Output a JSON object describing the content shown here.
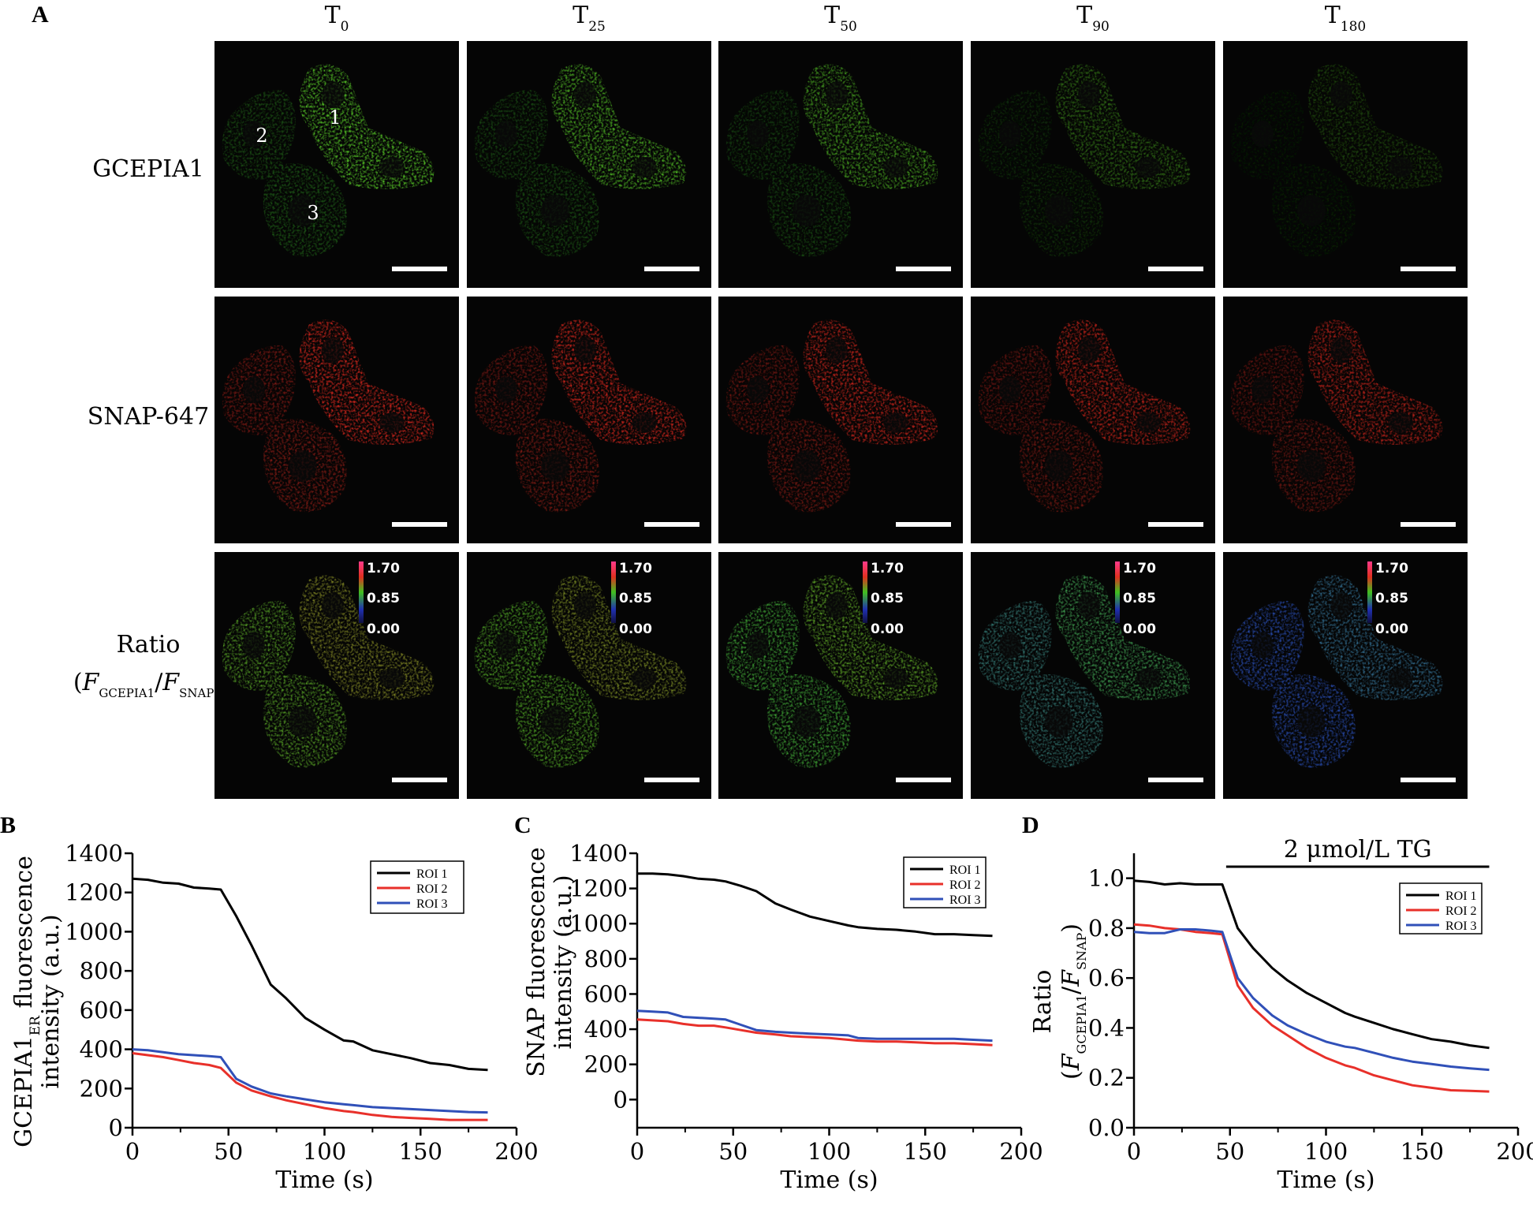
{
  "figure": {
    "panel_letters": {
      "a": "A",
      "b": "B",
      "c": "C",
      "d": "D"
    },
    "columns": [
      {
        "main": "T",
        "sub": "0"
      },
      {
        "main": "T",
        "sub": "25"
      },
      {
        "main": "T",
        "sub": "50"
      },
      {
        "main": "T",
        "sub": "90"
      },
      {
        "main": "T",
        "sub": "180"
      }
    ],
    "rows": [
      {
        "label": "GCEPIA1",
        "type": "green"
      },
      {
        "label": "SNAP-647",
        "type": "red"
      },
      {
        "label_line1": "Ratio",
        "open": "(",
        "f1": "F",
        "sub1": "GCEPIA1",
        "slash": "/",
        "f2": "F",
        "sub2": "SNAP",
        "close": ")",
        "type": "ratio"
      }
    ],
    "roi_labels": [
      "1",
      "2",
      "3"
    ],
    "colorbar_labels": [
      "1.70",
      "0.85",
      "0.00"
    ],
    "intensity_levels": {
      "green": [
        1.0,
        0.9,
        0.8,
        0.55,
        0.35
      ],
      "red": [
        1.0,
        0.95,
        0.92,
        0.88,
        0.85
      ],
      "ratio_hue": [
        0.62,
        0.6,
        0.5,
        0.3,
        0.1
      ]
    }
  },
  "colors": {
    "roi1": "#000000",
    "roi2": "#e8302a",
    "roi3": "#3050b8",
    "tg_bar": "#000000"
  },
  "chart_data": [
    {
      "panel": "B",
      "type": "line",
      "xlabel": "Time (s)",
      "ylabel_line1_main": "GCEPIA1",
      "ylabel_line1_sub": "ER",
      "ylabel_line1_rest": " fluorescence",
      "ylabel_line2": "intensity (a.u.)",
      "xlim": [
        0,
        200
      ],
      "ylim": [
        0,
        1400
      ],
      "xticks": [
        0,
        50,
        100,
        150,
        200
      ],
      "yticks": [
        0,
        200,
        400,
        600,
        800,
        1000,
        1200,
        1400
      ],
      "legend": "top-right",
      "series": [
        {
          "name": "ROI 1",
          "color": "#000000",
          "x": [
            0,
            8,
            16,
            24,
            32,
            40,
            46,
            54,
            62,
            72,
            80,
            90,
            100,
            110,
            115,
            125,
            135,
            145,
            155,
            165,
            175,
            185
          ],
          "y": [
            1270,
            1265,
            1250,
            1245,
            1225,
            1220,
            1215,
            1080,
            930,
            730,
            660,
            560,
            500,
            445,
            440,
            395,
            375,
            355,
            330,
            320,
            300,
            295
          ]
        },
        {
          "name": "ROI 2",
          "color": "#e8302a",
          "x": [
            0,
            8,
            16,
            24,
            32,
            40,
            46,
            54,
            62,
            72,
            80,
            90,
            100,
            110,
            115,
            125,
            135,
            145,
            155,
            165,
            175,
            185
          ],
          "y": [
            380,
            370,
            360,
            345,
            330,
            320,
            305,
            230,
            190,
            160,
            140,
            120,
            100,
            85,
            80,
            65,
            55,
            50,
            45,
            40,
            40,
            40
          ]
        },
        {
          "name": "ROI 3",
          "color": "#3050b8",
          "x": [
            0,
            8,
            16,
            24,
            32,
            40,
            46,
            54,
            62,
            72,
            80,
            90,
            100,
            110,
            115,
            125,
            135,
            145,
            155,
            165,
            175,
            185
          ],
          "y": [
            400,
            395,
            385,
            375,
            370,
            365,
            360,
            250,
            210,
            175,
            160,
            145,
            130,
            120,
            115,
            105,
            100,
            95,
            90,
            85,
            80,
            78
          ]
        }
      ]
    },
    {
      "panel": "C",
      "type": "line",
      "xlabel": "Time (s)",
      "ylabel_line1": "SNAP fluorescence",
      "ylabel_line2": "intensity (a.u.)",
      "xlim": [
        0,
        200
      ],
      "ylim": [
        -160,
        1400
      ],
      "xticks": [
        0,
        50,
        100,
        150,
        200
      ],
      "yticks": [
        0,
        200,
        400,
        600,
        800,
        1000,
        1200,
        1400
      ],
      "legend": "top-right",
      "series": [
        {
          "name": "ROI 1",
          "color": "#000000",
          "x": [
            0,
            8,
            16,
            24,
            32,
            40,
            46,
            54,
            62,
            72,
            80,
            90,
            100,
            110,
            115,
            125,
            135,
            145,
            155,
            165,
            175,
            185
          ],
          "y": [
            1285,
            1285,
            1280,
            1270,
            1255,
            1250,
            1240,
            1215,
            1185,
            1115,
            1080,
            1040,
            1015,
            990,
            980,
            970,
            965,
            955,
            940,
            940,
            935,
            930
          ]
        },
        {
          "name": "ROI 2",
          "color": "#e8302a",
          "x": [
            0,
            8,
            16,
            24,
            32,
            40,
            46,
            54,
            62,
            72,
            80,
            90,
            100,
            110,
            115,
            125,
            135,
            145,
            155,
            165,
            175,
            185
          ],
          "y": [
            455,
            450,
            445,
            430,
            420,
            420,
            410,
            395,
            380,
            370,
            360,
            355,
            350,
            340,
            335,
            330,
            330,
            325,
            320,
            320,
            315,
            310
          ]
        },
        {
          "name": "ROI 3",
          "color": "#3050b8",
          "x": [
            0,
            8,
            16,
            24,
            32,
            40,
            46,
            54,
            62,
            72,
            80,
            90,
            100,
            110,
            115,
            125,
            135,
            145,
            155,
            165,
            175,
            185
          ],
          "y": [
            505,
            500,
            495,
            470,
            465,
            460,
            455,
            425,
            395,
            385,
            380,
            375,
            370,
            365,
            350,
            345,
            345,
            345,
            345,
            345,
            340,
            335
          ]
        }
      ]
    },
    {
      "panel": "D",
      "type": "line",
      "xlabel": "Time (s)",
      "ylabel_line1": "Ratio",
      "ylabel_open": "(",
      "ylabel_f1": "F",
      "ylabel_sub1": "GCEPIA1",
      "ylabel_slash": "/",
      "ylabel_f2": "F",
      "ylabel_sub2": "SNAP",
      "ylabel_close": ")",
      "annotation": "2 μmol/L TG",
      "annotation_span": [
        48,
        185
      ],
      "xlim": [
        0,
        200
      ],
      "ylim": [
        0,
        1.1
      ],
      "xticks": [
        0,
        50,
        100,
        150,
        200
      ],
      "yticks": [
        0.0,
        0.2,
        0.4,
        0.6,
        0.8,
        1.0
      ],
      "legend": "top-right",
      "series": [
        {
          "name": "ROI 1",
          "color": "#000000",
          "x": [
            0,
            8,
            16,
            24,
            32,
            40,
            46,
            54,
            62,
            72,
            80,
            90,
            100,
            110,
            115,
            125,
            135,
            145,
            155,
            165,
            175,
            185
          ],
          "y": [
            0.99,
            0.985,
            0.975,
            0.98,
            0.975,
            0.975,
            0.975,
            0.8,
            0.72,
            0.64,
            0.59,
            0.54,
            0.5,
            0.46,
            0.445,
            0.42,
            0.395,
            0.375,
            0.355,
            0.345,
            0.33,
            0.32
          ]
        },
        {
          "name": "ROI 2",
          "color": "#e8302a",
          "x": [
            0,
            8,
            16,
            24,
            32,
            40,
            46,
            54,
            62,
            72,
            80,
            90,
            100,
            110,
            115,
            125,
            135,
            145,
            155,
            165,
            175,
            185
          ],
          "y": [
            0.815,
            0.81,
            0.8,
            0.795,
            0.785,
            0.78,
            0.775,
            0.57,
            0.48,
            0.41,
            0.37,
            0.32,
            0.28,
            0.25,
            0.24,
            0.21,
            0.19,
            0.17,
            0.16,
            0.15,
            0.148,
            0.145
          ]
        },
        {
          "name": "ROI 3",
          "color": "#3050b8",
          "x": [
            0,
            8,
            16,
            24,
            32,
            40,
            46,
            54,
            62,
            72,
            80,
            90,
            100,
            110,
            115,
            125,
            135,
            145,
            155,
            165,
            175,
            185
          ],
          "y": [
            0.785,
            0.78,
            0.78,
            0.795,
            0.795,
            0.79,
            0.785,
            0.6,
            0.52,
            0.45,
            0.41,
            0.375,
            0.345,
            0.325,
            0.32,
            0.3,
            0.28,
            0.265,
            0.255,
            0.245,
            0.238,
            0.232
          ]
        }
      ]
    }
  ]
}
